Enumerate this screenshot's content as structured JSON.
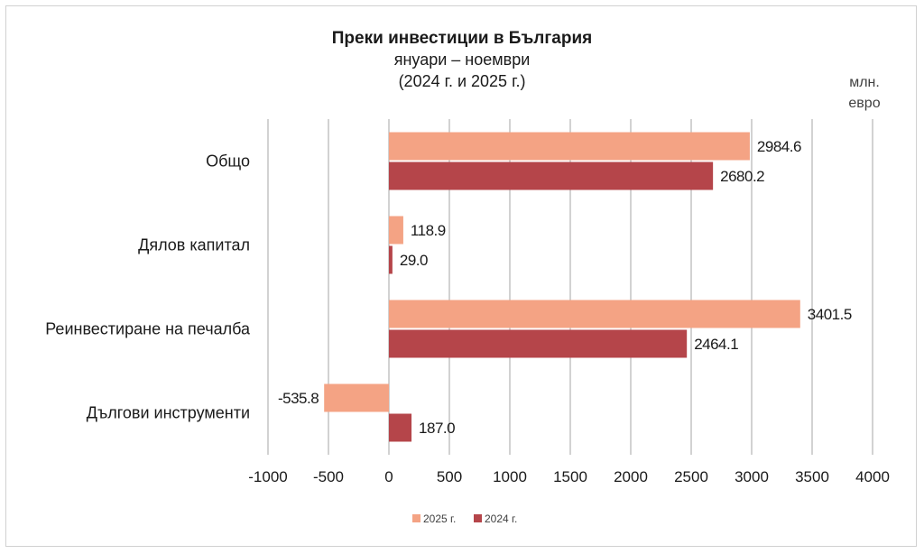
{
  "chart_data": {
    "type": "bar",
    "orientation": "horizontal",
    "title": "Преки инвестиции в България",
    "subtitle_lines": [
      "януари – ноември",
      "(2024 г. и 2025 г.)"
    ],
    "unit_lines": [
      "млн.",
      "евро"
    ],
    "categories": [
      "Общо",
      "Дялов капитал",
      "Реинвестиране на печалба",
      "Дългови инструменти"
    ],
    "series": [
      {
        "name": "2025 г.",
        "color": "#f4a384",
        "values": [
          2984.6,
          118.9,
          3401.5,
          -535.8
        ],
        "labels": [
          "2984.6",
          "118.9",
          "3401.5",
          "-535.8"
        ]
      },
      {
        "name": "2024 г.",
        "color": "#b5454a",
        "values": [
          2680.2,
          29.0,
          2464.1,
          187.0
        ],
        "labels": [
          "2680.2",
          "29.0",
          "2464.1",
          "187.0"
        ]
      }
    ],
    "xlim": [
      -1000,
      4000
    ],
    "xticks": [
      -1000,
      -500,
      0,
      500,
      1000,
      1500,
      2000,
      2500,
      3000,
      3500,
      4000
    ],
    "xtick_labels": [
      "-1000",
      "-500",
      "0",
      "500",
      "1000",
      "1500",
      "2000",
      "2500",
      "3000",
      "3500",
      "4000"
    ],
    "grid": "vertical",
    "legend_position": "bottom"
  }
}
